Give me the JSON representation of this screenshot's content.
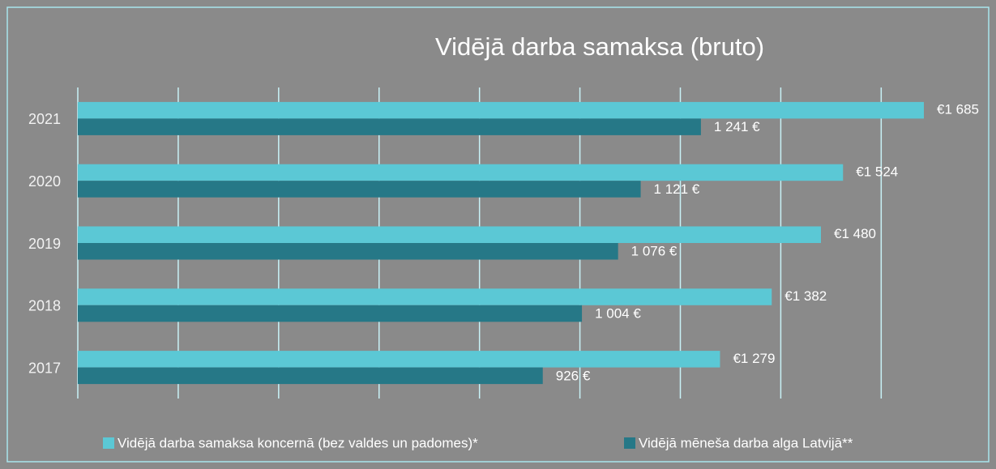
{
  "chart_data": {
    "type": "hbar",
    "title": "Vidējā darba samaksa (bruto)",
    "categories": [
      "2017",
      "2018",
      "2019",
      "2020",
      "2021"
    ],
    "series": [
      {
        "name": "Vidējā darba samaksa koncernā (bez valdes un padomes)*",
        "color": "#5bc8d5",
        "values": [
          1279,
          1382,
          1480,
          1524,
          1685
        ],
        "value_labels": [
          "€1 279",
          "€1 382",
          "€1 480",
          "€1 524",
          "€1 685"
        ]
      },
      {
        "name": "Vidējā mēneša darba alga Latvijā**",
        "color": "#267887",
        "values": [
          926,
          1004,
          1076,
          1121,
          1241
        ],
        "value_labels": [
          "926 €",
          "1 004 €",
          "1 076 €",
          "1 121 €",
          "1 241 €"
        ]
      }
    ],
    "xlim": [
      0,
      1800
    ],
    "xticks": [
      0,
      200,
      400,
      600,
      800,
      1000,
      1200,
      1400,
      1600
    ],
    "grid": true,
    "legend": "bottom"
  }
}
